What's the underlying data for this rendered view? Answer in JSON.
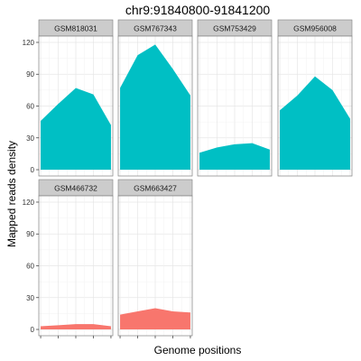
{
  "chart_data": {
    "type": "area",
    "title": "chr9:91840800-91841200",
    "xlabel": "Genome positions",
    "ylabel": "Mapped reads density",
    "ylim": [
      0,
      120
    ],
    "yticks": [
      0,
      30,
      60,
      90,
      120
    ],
    "grid": true,
    "x": [
      0,
      1,
      2,
      3,
      4
    ],
    "series": [
      {
        "name": "GSM818031",
        "color": "#00BFC4",
        "values": [
          46,
          62,
          77,
          71,
          42
        ]
      },
      {
        "name": "GSM767343",
        "color": "#00BFC4",
        "values": [
          77,
          108,
          118,
          95,
          70
        ]
      },
      {
        "name": "GSM753429",
        "color": "#00BFC4",
        "values": [
          16,
          21,
          24,
          25,
          19
        ]
      },
      {
        "name": "GSM956008",
        "color": "#00BFC4",
        "values": [
          56,
          70,
          88,
          75,
          48
        ]
      },
      {
        "name": "GSM466732",
        "color": "#F8766D",
        "values": [
          3,
          4,
          5,
          5,
          3
        ]
      },
      {
        "name": "GSM663427",
        "color": "#F8766D",
        "values": [
          14,
          17,
          20,
          17,
          16
        ]
      }
    ]
  }
}
